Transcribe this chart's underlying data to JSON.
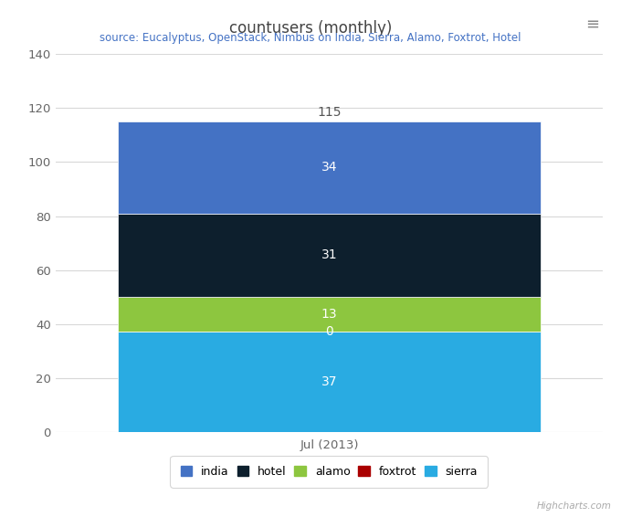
{
  "title": "countusers (monthly)",
  "subtitle": "source: Eucalyptus, OpenStack, Nimbus on India, Sierra, Alamo, Foxtrot, Hotel",
  "x_label": "Jul (2013)",
  "ylim": [
    0,
    140
  ],
  "yticks": [
    0,
    20,
    40,
    60,
    80,
    100,
    120,
    140
  ],
  "bar_width": 0.65,
  "segments": [
    {
      "label": "sierra",
      "value": 37,
      "color": "#29ABE2",
      "text_color": "white"
    },
    {
      "label": "foxtrot",
      "value": 0,
      "color": "#AA0000",
      "text_color": "white"
    },
    {
      "label": "alamo",
      "value": 13,
      "color": "#8DC63F",
      "text_color": "white"
    },
    {
      "label": "hotel",
      "value": 31,
      "color": "#0D1F2D",
      "text_color": "white"
    },
    {
      "label": "india",
      "value": 34,
      "color": "#4472C4",
      "text_color": "white"
    }
  ],
  "total_label": 115,
  "total_label_color": "#555555",
  "background_color": "#FFFFFF",
  "plot_bg_color": "#FFFFFF",
  "grid_color": "#D8D8D8",
  "title_color": "#444444",
  "subtitle_color": "#4472C4",
  "tick_color": "#666666",
  "legend_labels": [
    "india",
    "hotel",
    "alamo",
    "foxtrot",
    "sierra"
  ],
  "legend_colors": [
    "#4472C4",
    "#0D1F2D",
    "#8DC63F",
    "#AA0000",
    "#29ABE2"
  ],
  "highcharts_text": "Highcharts.com",
  "menu_icon_color": "#888888"
}
